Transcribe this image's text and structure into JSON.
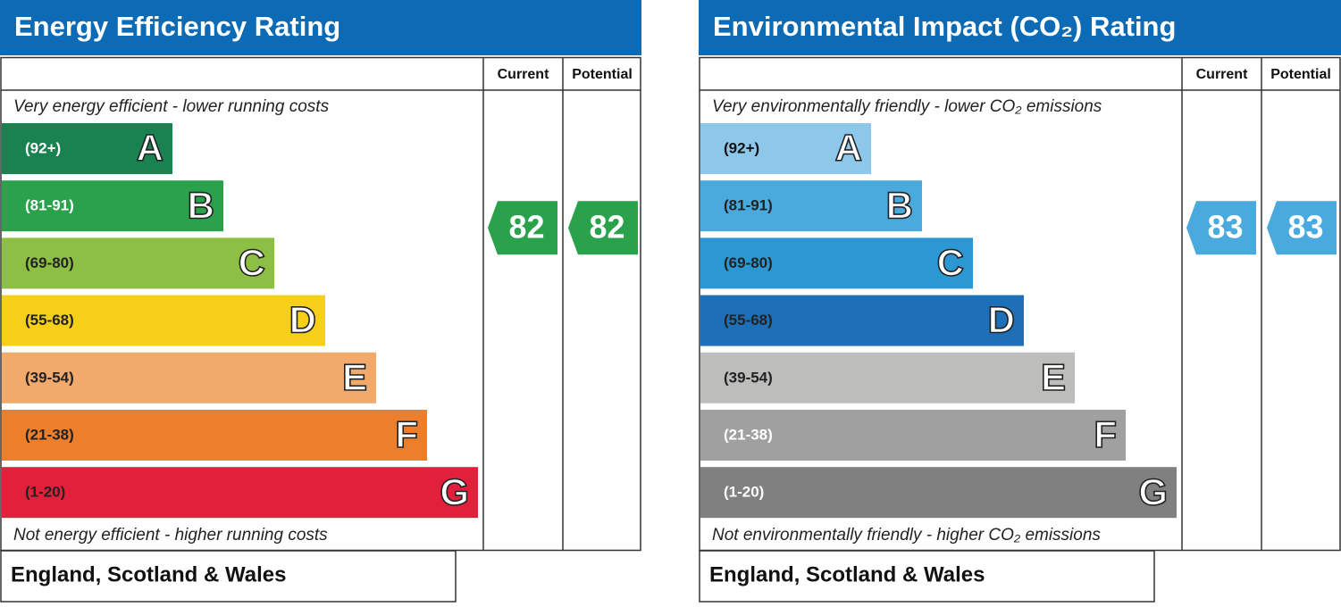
{
  "panels": [
    {
      "title": "Energy Efficiency Rating",
      "columns": [
        "Current",
        "Potential"
      ],
      "top_note": "Very energy efficient - lower running costs",
      "bottom_note": "Not energy efficient - higher running costs",
      "bands": [
        {
          "range": "(92+)",
          "letter": "A",
          "color": "#1a8150",
          "text_color": "#ffffff"
        },
        {
          "range": "(81-91)",
          "letter": "B",
          "color": "#2aa14b",
          "text_color": "#ffffff"
        },
        {
          "range": "(69-80)",
          "letter": "C",
          "color": "#8dbf44",
          "text_color": "#222222"
        },
        {
          "range": "(55-68)",
          "letter": "D",
          "color": "#f6d018",
          "text_color": "#222222"
        },
        {
          "range": "(39-54)",
          "letter": "E",
          "color": "#f2a96c",
          "text_color": "#222222"
        },
        {
          "range": "(21-38)",
          "letter": "F",
          "color": "#ec7f2b",
          "text_color": "#222222"
        },
        {
          "range": "(1-20)",
          "letter": "G",
          "color": "#e2203b",
          "text_color": "#222222"
        }
      ],
      "current": 82,
      "potential": 82,
      "rating_color": "#2aa14b",
      "region": "England, Scotland & Wales"
    },
    {
      "title": "Environmental Impact (CO₂) Rating",
      "columns": [
        "Current",
        "Potential"
      ],
      "top_note": "Very environmentally friendly - lower CO₂ emissions",
      "bottom_note": "Not environmentally friendly - higher CO₂ emissions",
      "bands": [
        {
          "range": "(92+)",
          "letter": "A",
          "color": "#8dc7ea",
          "text_color": "#111111"
        },
        {
          "range": "(81-91)",
          "letter": "B",
          "color": "#4aa9dd",
          "text_color": "#222222"
        },
        {
          "range": "(69-80)",
          "letter": "C",
          "color": "#2b98d3",
          "text_color": "#222222"
        },
        {
          "range": "(55-68)",
          "letter": "D",
          "color": "#1d70b8",
          "text_color": "#222222"
        },
        {
          "range": "(39-54)",
          "letter": "E",
          "color": "#bdbdbc",
          "text_color": "#222222"
        },
        {
          "range": "(21-38)",
          "letter": "F",
          "color": "#a0a0a0",
          "text_color": "#ffffff"
        },
        {
          "range": "(1-20)",
          "letter": "G",
          "color": "#808080",
          "text_color": "#ffffff"
        }
      ],
      "current": 83,
      "potential": 83,
      "rating_color": "#4aa9dd",
      "region": "England, Scotland & Wales"
    }
  ]
}
